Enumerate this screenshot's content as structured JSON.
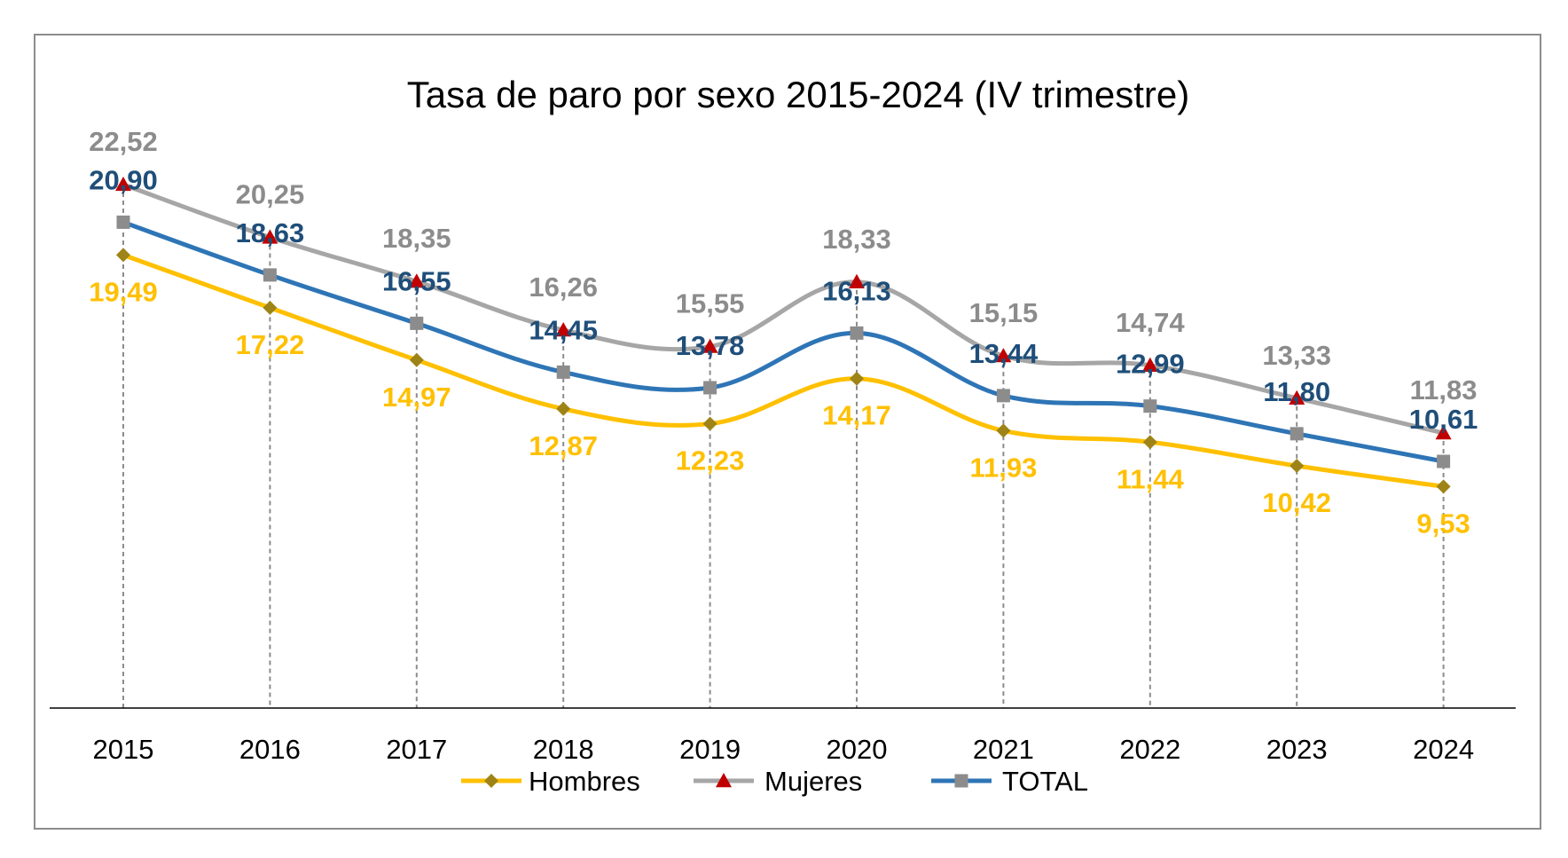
{
  "chart_data": {
    "type": "line",
    "title": "Tasa de paro por sexo 2015-2024 (IV trimestre)",
    "xlabel": "",
    "ylabel": "",
    "categories": [
      "2015",
      "2016",
      "2017",
      "2018",
      "2019",
      "2020",
      "2021",
      "2022",
      "2023",
      "2024"
    ],
    "ylim": [
      0,
      25
    ],
    "grid": false,
    "legend": "bottom",
    "series": [
      {
        "name": "Hombres",
        "color": "#FFC000",
        "marker_color": "#9E8417",
        "label_color": "#FFC000",
        "marker": "diamond",
        "values": [
          19.49,
          17.22,
          14.97,
          12.87,
          12.23,
          14.17,
          11.93,
          11.44,
          10.42,
          9.53
        ],
        "labels": [
          "19,49",
          "17,22",
          "14,97",
          "12,87",
          "12,23",
          "14,17",
          "11,93",
          "11,44",
          "10,42",
          "9,53"
        ]
      },
      {
        "name": "Mujeres",
        "color": "#A6A6A6",
        "marker_color": "#C00000",
        "label_color": "#8C8C8C",
        "marker": "triangle",
        "values": [
          22.52,
          20.25,
          18.35,
          16.26,
          15.55,
          18.33,
          15.15,
          14.74,
          13.33,
          11.83
        ],
        "labels": [
          "22,52",
          "20,25",
          "18,35",
          "16,26",
          "15,55",
          "18,33",
          "15,15",
          "14,74",
          "13,33",
          "11,83"
        ]
      },
      {
        "name": "TOTAL",
        "color": "#2E75B6",
        "marker_color": "#8C8C8C",
        "label_color": "#1F4E79",
        "marker": "square",
        "values": [
          20.9,
          18.63,
          16.55,
          14.45,
          13.78,
          16.13,
          13.44,
          12.99,
          11.8,
          10.61
        ],
        "labels": [
          "20,90",
          "18,63",
          "16,55",
          "14,45",
          "13,78",
          "16,13",
          "13,44",
          "12,99",
          "11,80",
          "10,61"
        ]
      }
    ]
  }
}
